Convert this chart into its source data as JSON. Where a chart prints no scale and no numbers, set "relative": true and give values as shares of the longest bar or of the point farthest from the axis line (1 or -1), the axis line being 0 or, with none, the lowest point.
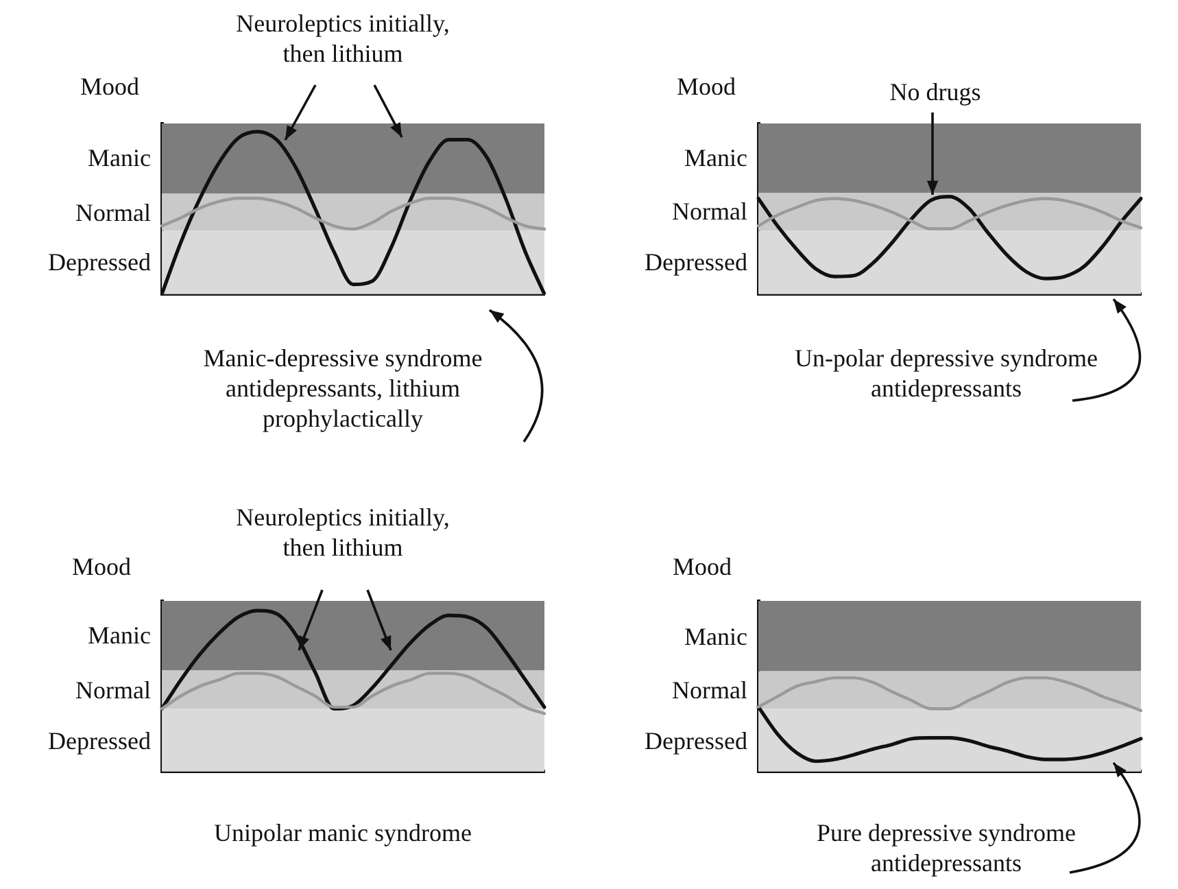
{
  "chart_data": [
    {
      "type": "line",
      "relative": true,
      "ylabel": "Mood",
      "xlabel": "Manic-depressive syndrome antidepressants, lithium prophylactically",
      "annotations": [
        "Neuroleptics initially, then lithium"
      ],
      "categories": [
        null,
        null,
        null,
        null,
        null,
        null,
        null,
        null,
        null,
        null,
        null,
        null,
        null,
        null,
        null,
        null,
        null,
        null,
        null,
        null,
        null
      ],
      "marker": "none",
      "bands": [
        {
          "axis": "y",
          "from": 0.62,
          "to": 1.05,
          "color": "#7d7d7d",
          "label": "Manic"
        },
        {
          "axis": "y",
          "from": 0.39,
          "to": 0.62,
          "color": "#c9c9c9",
          "label": "Normal"
        },
        {
          "axis": "y",
          "from": 0,
          "to": 0.39,
          "color": "#dadada",
          "label": "Depressed"
        }
      ],
      "series": [
        {
          "color": "#9a9a9a",
          "values": [
            0.42,
            0.47,
            0.53,
            0.57,
            0.59,
            0.59,
            0.57,
            0.53,
            0.47,
            0.42,
            0.4,
            0.44,
            0.51,
            0.56,
            0.59,
            0.59,
            0.57,
            0.53,
            0.47,
            0.42,
            0.4
          ]
        },
        {
          "color": "#111111",
          "values": [
            0,
            0.32,
            0.59,
            0.81,
            0.96,
            1,
            0.95,
            0.78,
            0.53,
            0.26,
            0.06,
            0.08,
            0.29,
            0.58,
            0.82,
            0.95,
            0.95,
            0.84,
            0.58,
            0.26,
            0
          ]
        }
      ]
    },
    {
      "type": "line",
      "relative": true,
      "ylabel": "Mood",
      "xlabel": "Un-polar depressive syndrome antidepressants",
      "annotations": [
        "No drugs"
      ],
      "categories": [
        null,
        null,
        null,
        null,
        null,
        null,
        null,
        null,
        null,
        null,
        null,
        null,
        null,
        null,
        null,
        null,
        null,
        null,
        null,
        null,
        null
      ],
      "marker": "none",
      "bands": [
        {
          "axis": "y",
          "from": 1.04,
          "to": 1.75,
          "color": "#7d7d7d",
          "label": "Manic"
        },
        {
          "axis": "y",
          "from": 0.65,
          "to": 1.04,
          "color": "#c9c9c9",
          "label": "Normal"
        },
        {
          "axis": "y",
          "from": 0,
          "to": 0.65,
          "color": "#dadada",
          "label": "Depressed"
        }
      ],
      "series": [
        {
          "color": "#9a9a9a",
          "values": [
            0.7,
            0.81,
            0.89,
            0.96,
            0.98,
            0.96,
            0.91,
            0.84,
            0.75,
            0.67,
            0.67,
            0.75,
            0.84,
            0.91,
            0.96,
            0.98,
            0.96,
            0.91,
            0.84,
            0.75,
            0.68
          ]
        },
        {
          "color": "#111111",
          "values": [
            0.98,
            0.7,
            0.46,
            0.26,
            0.18,
            0.19,
            0.32,
            0.53,
            0.77,
            0.96,
            1,
            0.88,
            0.63,
            0.4,
            0.23,
            0.16,
            0.18,
            0.28,
            0.49,
            0.75,
            0.98
          ]
        }
      ]
    },
    {
      "type": "line",
      "relative": true,
      "ylabel": "Mood",
      "xlabel": "Unipolar manic syndrome",
      "annotations": [
        "Neuroleptics initially, then lithium"
      ],
      "categories": [
        null,
        null,
        null,
        null,
        null,
        null,
        null,
        null,
        null,
        null,
        null,
        null,
        null,
        null,
        null,
        null,
        null,
        null,
        null,
        null,
        null
      ],
      "marker": "none",
      "bands": [
        {
          "axis": "y",
          "from": 0.63,
          "to": 1.06,
          "color": "#7d7d7d",
          "label": "Manic"
        },
        {
          "axis": "y",
          "from": 0.39,
          "to": 0.63,
          "color": "#c9c9c9",
          "label": "Normal"
        },
        {
          "axis": "y",
          "from": 0,
          "to": 0.39,
          "color": "#dadada",
          "label": "Depressed"
        }
      ],
      "series": [
        {
          "color": "#9a9a9a",
          "values": [
            0.39,
            0.47,
            0.53,
            0.57,
            0.61,
            0.61,
            0.59,
            0.53,
            0.47,
            0.4,
            0.4,
            0.47,
            0.53,
            0.57,
            0.61,
            0.61,
            0.59,
            0.53,
            0.47,
            0.4,
            0.36
          ]
        },
        {
          "color": "#111111",
          "values": [
            0.39,
            0.57,
            0.73,
            0.86,
            0.96,
            1,
            0.98,
            0.85,
            0.62,
            0.39,
            0.41,
            0.52,
            0.66,
            0.8,
            0.91,
            0.97,
            0.96,
            0.89,
            0.74,
            0.57,
            0.4
          ]
        }
      ]
    },
    {
      "type": "line",
      "relative": true,
      "ylabel": "Mood",
      "xlabel": "Pure depressive syndrome antidepressants",
      "categories": [
        null,
        null,
        null,
        null,
        null,
        null,
        null,
        null,
        null,
        null,
        null,
        null,
        null,
        null,
        null,
        null,
        null,
        null,
        null,
        null,
        null
      ],
      "marker": "none",
      "bands": [
        {
          "axis": "y",
          "from": 1.07,
          "to": 1.82,
          "color": "#7d7d7d",
          "label": "Manic"
        },
        {
          "axis": "y",
          "from": 0.67,
          "to": 1.07,
          "color": "#c9c9c9",
          "label": "Normal"
        },
        {
          "axis": "y",
          "from": 0,
          "to": 0.67,
          "color": "#dadada",
          "label": "Depressed"
        }
      ],
      "series": [
        {
          "color": "#9a9a9a",
          "values": [
            0.69,
            0.8,
            0.91,
            0.96,
            1,
            1,
            0.95,
            0.85,
            0.76,
            0.67,
            0.67,
            0.76,
            0.85,
            0.95,
            1,
            1,
            0.96,
            0.89,
            0.8,
            0.73,
            0.65
          ]
        },
        {
          "color": "#111111",
          "values": [
            0.69,
            0.4,
            0.2,
            0.11,
            0.13,
            0.18,
            0.24,
            0.29,
            0.35,
            0.36,
            0.36,
            0.33,
            0.27,
            0.22,
            0.16,
            0.13,
            0.13,
            0.15,
            0.2,
            0.27,
            0.35
          ]
        }
      ]
    }
  ]
}
